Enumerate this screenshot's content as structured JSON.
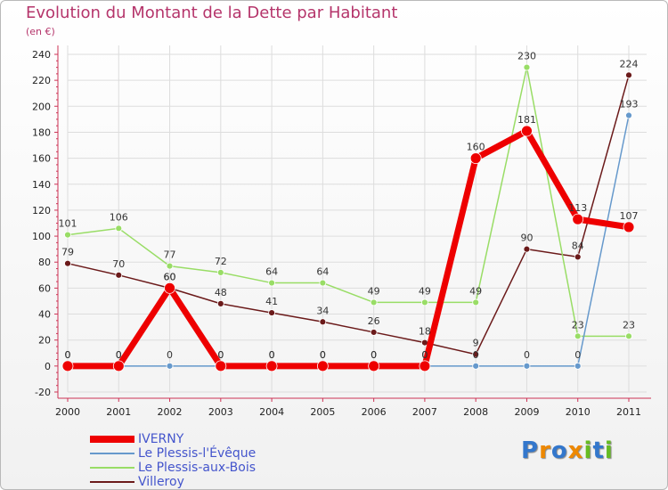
{
  "chart_data": {
    "type": "line",
    "title": "Evolution du Montant de la Dette par Habitant",
    "subtitle": "(en €)",
    "xlabel": "",
    "ylabel": "",
    "ylim": [
      -20,
      240
    ],
    "yticks": [
      -20,
      0,
      20,
      40,
      60,
      80,
      100,
      120,
      140,
      160,
      180,
      200,
      220,
      240
    ],
    "categories": [
      "2000",
      "2001",
      "2002",
      "2003",
      "2004",
      "2005",
      "2006",
      "2007",
      "2008",
      "2009",
      "2010",
      "2011"
    ],
    "legend_position": "bottom-left",
    "series": [
      {
        "name": "Villeroy",
        "color": "#6b1a1a",
        "values": [
          79,
          70,
          60,
          48,
          41,
          34,
          26,
          18,
          9,
          90,
          84,
          224
        ]
      },
      {
        "name": "Le Plessis-aux-Bois",
        "color": "#99dd66",
        "values": [
          101,
          106,
          77,
          72,
          64,
          64,
          49,
          49,
          49,
          230,
          23,
          23
        ]
      },
      {
        "name": "Le Plessis-l'Évêque",
        "color": "#6699cc",
        "values": [
          0,
          0,
          0,
          0,
          0,
          0,
          0,
          0,
          0,
          0,
          0,
          193
        ]
      },
      {
        "name": "IVERNY",
        "color": "#ee0000",
        "values": [
          0,
          0,
          60,
          0,
          0,
          0,
          0,
          0,
          160,
          181,
          113,
          107
        ]
      }
    ]
  },
  "legend_order": [
    "IVERNY",
    "Le Plessis-l'Évêque",
    "Le Plessis-aux-Bois",
    "Villeroy"
  ],
  "logo": {
    "text": "Proxiti"
  }
}
